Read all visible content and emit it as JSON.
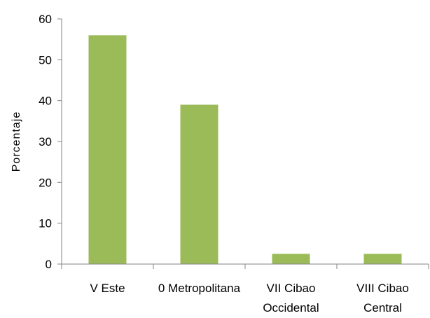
{
  "colors": {
    "bar": "#9BBB59",
    "axis": "#868686"
  },
  "chart_data": {
    "type": "bar",
    "title": "",
    "xlabel": "",
    "ylabel": "Porcentaje",
    "ylim": [
      0,
      60
    ],
    "yticks": [
      0,
      10,
      20,
      30,
      40,
      50,
      60
    ],
    "grid": false,
    "categories": [
      [
        "V Este"
      ],
      [
        "0 Metropolitana"
      ],
      [
        "VII Cibao",
        "Occidental"
      ],
      [
        "VIII Cibao",
        "Central"
      ]
    ],
    "values": [
      56,
      39,
      2.5,
      2.5
    ]
  }
}
